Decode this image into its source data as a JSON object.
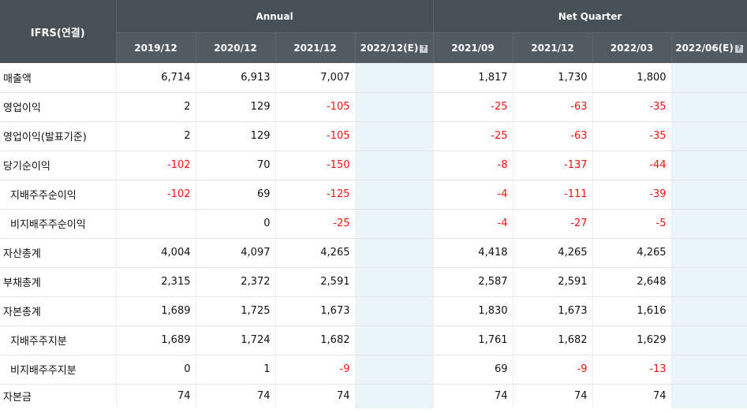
{
  "header": {
    "corner": "IFRS(연결)",
    "annual": "Annual",
    "quarter": "Net Quarter",
    "periods": [
      "2019/12",
      "2020/12",
      "2021/12",
      "2022/12(E)",
      "2021/09",
      "2021/12",
      "2022/03",
      "2022/06(E)"
    ],
    "estimate_icon": "?"
  },
  "rows": [
    {
      "label": "매출액",
      "sub": false,
      "values": [
        "6,714",
        "6,913",
        "7,007",
        "",
        "1,817",
        "1,730",
        "1,800",
        ""
      ]
    },
    {
      "label": "영업이익",
      "sub": false,
      "values": [
        "2",
        "129",
        "-105",
        "",
        "-25",
        "-63",
        "-35",
        ""
      ]
    },
    {
      "label": "영업이익(발표기준)",
      "sub": false,
      "values": [
        "2",
        "129",
        "-105",
        "",
        "-25",
        "-63",
        "-35",
        ""
      ]
    },
    {
      "label": "당기순이익",
      "sub": false,
      "values": [
        "-102",
        "70",
        "-150",
        "",
        "-8",
        "-137",
        "-44",
        ""
      ]
    },
    {
      "label": "지배주주순이익",
      "sub": true,
      "values": [
        "-102",
        "69",
        "-125",
        "",
        "-4",
        "-111",
        "-39",
        ""
      ]
    },
    {
      "label": "비지배주주순이익",
      "sub": true,
      "values": [
        "",
        "0",
        "-25",
        "",
        "-4",
        "-27",
        "-5",
        ""
      ]
    },
    {
      "label": "자산총계",
      "sub": false,
      "values": [
        "4,004",
        "4,097",
        "4,265",
        "",
        "4,418",
        "4,265",
        "4,265",
        ""
      ]
    },
    {
      "label": "부채총계",
      "sub": false,
      "values": [
        "2,315",
        "2,372",
        "2,591",
        "",
        "2,587",
        "2,591",
        "2,648",
        ""
      ]
    },
    {
      "label": "자본총계",
      "sub": false,
      "values": [
        "1,689",
        "1,725",
        "1,673",
        "",
        "1,830",
        "1,673",
        "1,616",
        ""
      ]
    },
    {
      "label": "지배주주지분",
      "sub": true,
      "values": [
        "1,689",
        "1,724",
        "1,682",
        "",
        "1,761",
        "1,682",
        "1,629",
        ""
      ]
    },
    {
      "label": "비지배주주지분",
      "sub": true,
      "values": [
        "0",
        "1",
        "-9",
        "",
        "69",
        "-9",
        "-13",
        ""
      ]
    },
    {
      "label": "자본금",
      "sub": false,
      "values": [
        "74",
        "74",
        "74",
        "",
        "74",
        "74",
        "74",
        ""
      ]
    }
  ],
  "colors": {
    "header_bg": "#474f57",
    "header_sub_bg": "#525a62",
    "estimate_bg": "#e9f5fb",
    "negative": "#ff1010"
  }
}
